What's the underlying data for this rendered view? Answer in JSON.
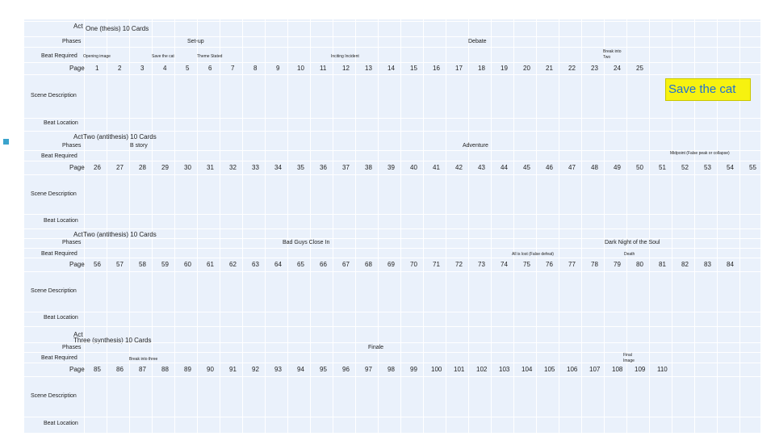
{
  "labels": {
    "act": "Act",
    "phases": "Phases",
    "beat_required": "Beat Required",
    "page": "Page",
    "scene_description": "Scene Description",
    "beat_location": "Beat Location"
  },
  "sections": [
    {
      "act_title": "One (thesis) 10 Cards",
      "phases": [
        "Set-up",
        "Debate"
      ],
      "beats": [
        "Opening image",
        "Save the cat",
        "Theme Stated",
        "Inciting Incident",
        "Break into Two"
      ],
      "pages": [
        "1",
        "2",
        "3",
        "4",
        "5",
        "6",
        "7",
        "8",
        "9",
        "10",
        "11",
        "12",
        "13",
        "14",
        "15",
        "16",
        "17",
        "18",
        "19",
        "20",
        "21",
        "22",
        "23",
        "24",
        "25"
      ]
    },
    {
      "act_title": "Two (antithesis) 10 Cards",
      "phases": [
        "B story",
        "Adventure"
      ],
      "beats": [
        "Midpoint (False peak or collapse)"
      ],
      "pages": [
        "26",
        "27",
        "28",
        "29",
        "30",
        "31",
        "32",
        "33",
        "34",
        "35",
        "36",
        "37",
        "38",
        "39",
        "40",
        "41",
        "42",
        "43",
        "44",
        "45",
        "46",
        "47",
        "48",
        "49",
        "50",
        "51",
        "52",
        "53",
        "54",
        "55"
      ]
    },
    {
      "act_title": "Two (antithesis) 10 Cards",
      "phases": [
        "Bad Guys Close In",
        "Dark Night of the Soul"
      ],
      "beats": [
        "All is lost (False defeat)",
        "Death"
      ],
      "pages": [
        "56",
        "57",
        "58",
        "59",
        "60",
        "61",
        "62",
        "63",
        "64",
        "65",
        "66",
        "67",
        "68",
        "69",
        "70",
        "71",
        "72",
        "73",
        "74",
        "75",
        "76",
        "77",
        "78",
        "79",
        "80",
        "81",
        "82",
        "83",
        "84"
      ]
    },
    {
      "act_title": "Three (synthesis) 10 Cards",
      "phases": [
        "Finale"
      ],
      "beats": [
        "Break into three",
        "Final Image"
      ],
      "pages": [
        "85",
        "86",
        "87",
        "88",
        "89",
        "90",
        "91",
        "92",
        "93",
        "94",
        "95",
        "96",
        "97",
        "98",
        "99",
        "100",
        "101",
        "102",
        "103",
        "104",
        "105",
        "106",
        "107",
        "108",
        "109",
        "110"
      ]
    }
  ],
  "callout": {
    "text": "Save the cat",
    "bg": "#f7f20f",
    "color": "#1e6fd6"
  },
  "colors": {
    "sheet": "#eaf1fb",
    "marker": "#3aa3cc"
  }
}
